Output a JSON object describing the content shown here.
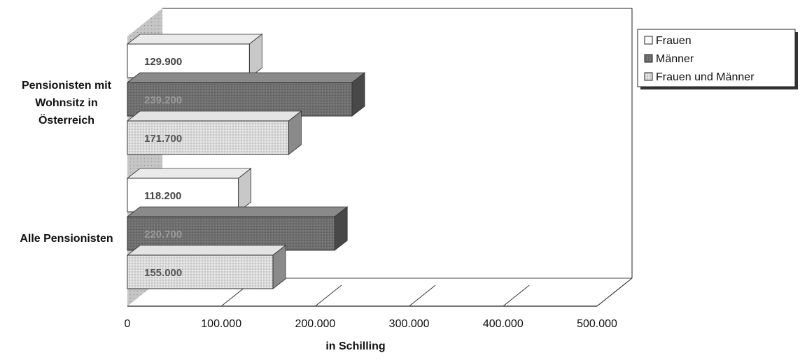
{
  "chart_data": {
    "type": "bar",
    "orientation": "horizontal",
    "three_d": true,
    "categories": [
      "Pensionisten mit Wohnsitz in Österreich",
      "Alle Pensionisten"
    ],
    "category_lines": [
      [
        "Pensionisten mit",
        "Wohnsitz in",
        "Österreich"
      ],
      [
        "Alle Pensionisten"
      ]
    ],
    "series": [
      {
        "name": "Frauen",
        "values": [
          129900,
          118200
        ],
        "value_labels": [
          "129.900",
          "118.200"
        ],
        "color": "#ffffff"
      },
      {
        "name": "Männer",
        "values": [
          239200,
          220700
        ],
        "value_labels": [
          "239.200",
          "220.700"
        ],
        "color": "#6f6f6f"
      },
      {
        "name": "Frauen und Männer",
        "values": [
          171700,
          155000
        ],
        "value_labels": [
          "171.700",
          "155.000"
        ],
        "color": "#d4d4d4"
      }
    ],
    "xlabel": "in Schilling",
    "xlim": [
      0,
      500000
    ],
    "xticks": [
      0,
      100000,
      200000,
      300000,
      400000,
      500000
    ],
    "xtick_labels": [
      "0",
      "100.000",
      "200.000",
      "300.000",
      "400.000",
      "500.000"
    ],
    "legend_position": "top-right",
    "grid": false
  }
}
